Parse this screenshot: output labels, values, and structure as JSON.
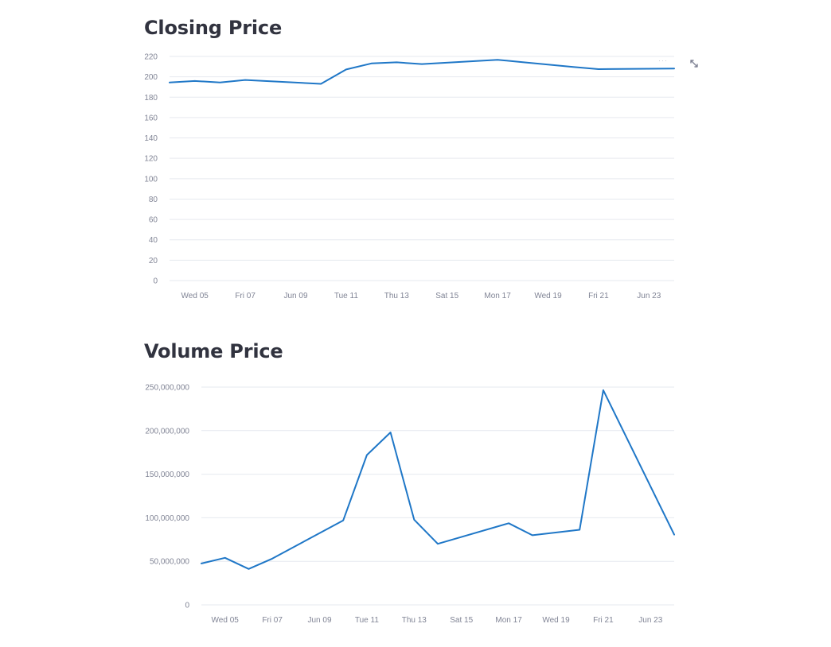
{
  "colors": {
    "line": "#1f77c7",
    "title": "#31333f",
    "tick": "#808495",
    "grid": "#e6e9ef"
  },
  "toolbar": {
    "expand_icon": "expand-arrows-icon",
    "menu_icon": "more-dots-icon",
    "menu_label": "···"
  },
  "chart_data": [
    {
      "type": "line",
      "title": "Closing Price",
      "xlabel": "",
      "ylabel": "",
      "x_ticks": [
        "Wed 05",
        "Fri 07",
        "Jun 09",
        "Tue 11",
        "Thu 13",
        "Sat 15",
        "Mon 17",
        "Wed 19",
        "Fri 21",
        "Jun 23"
      ],
      "y_ticks": [
        0,
        20,
        40,
        60,
        80,
        100,
        120,
        140,
        160,
        180,
        200,
        220
      ],
      "ylim": [
        0,
        220
      ],
      "xlim": [
        "2024-06-04",
        "2024-06-24"
      ],
      "series": [
        {
          "x": [
            "2024-06-04",
            "2024-06-05",
            "2024-06-06",
            "2024-06-07",
            "2024-06-10",
            "2024-06-11",
            "2024-06-12",
            "2024-06-13",
            "2024-06-14",
            "2024-06-17",
            "2024-06-18",
            "2024-06-20",
            "2024-06-21",
            "2024-06-24"
          ],
          "values": [
            194.4,
            195.9,
            194.5,
            196.9,
            193.1,
            207.2,
            213.1,
            214.2,
            212.5,
            216.7,
            214.3,
            209.7,
            207.5,
            208.1
          ]
        }
      ],
      "grid": true,
      "legend": "none"
    },
    {
      "type": "line",
      "title": "Volume Price",
      "xlabel": "",
      "ylabel": "",
      "x_ticks": [
        "Wed 05",
        "Fri 07",
        "Jun 09",
        "Tue 11",
        "Thu 13",
        "Sat 15",
        "Mon 17",
        "Wed 19",
        "Fri 21",
        "Jun 23"
      ],
      "y_ticks": [
        "0",
        "50,000,000",
        "100,000,000",
        "150,000,000",
        "200,000,000",
        "250,000,000"
      ],
      "ylim": [
        0,
        250000000
      ],
      "xlim": [
        "2024-06-04",
        "2024-06-24"
      ],
      "series": [
        {
          "x": [
            "2024-06-04",
            "2024-06-05",
            "2024-06-06",
            "2024-06-07",
            "2024-06-10",
            "2024-06-11",
            "2024-06-12",
            "2024-06-13",
            "2024-06-14",
            "2024-06-17",
            "2024-06-18",
            "2024-06-20",
            "2024-06-21",
            "2024-06-24"
          ],
          "values": [
            47500000,
            54000000,
            41200000,
            53100000,
            97000000,
            172000000,
            198000000,
            97800000,
            70100000,
            93700000,
            79900000,
            86200000,
            246400000,
            80700000
          ]
        }
      ],
      "grid": true,
      "legend": "none"
    }
  ]
}
